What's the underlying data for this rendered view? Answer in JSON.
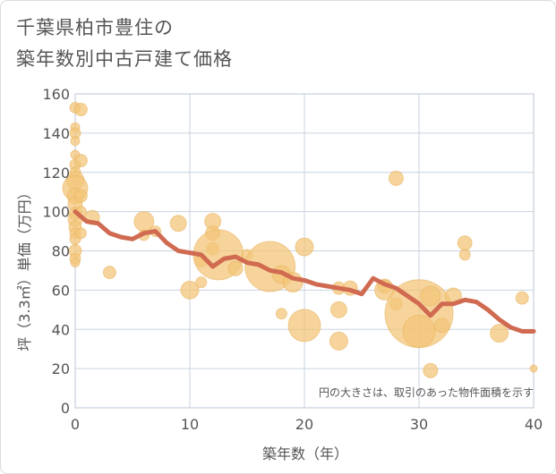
{
  "chart_data": {
    "type": "scatter",
    "title": [
      "千葉県柏市豊住の",
      "築年数別中古戸建て価格"
    ],
    "xlabel": "築年数（年）",
    "ylabel": "坪（3.3㎡）単価（万円）",
    "annotation": "円の大きさは、取引のあった物件面積を示す",
    "xlim": [
      0,
      40
    ],
    "ylim": [
      0,
      160
    ],
    "xticks": [
      0,
      10,
      20,
      30,
      40
    ],
    "yticks": [
      0,
      20,
      40,
      60,
      80,
      100,
      120,
      140,
      160
    ],
    "grid": true,
    "colors": {
      "bubble": "#f3c57a",
      "bubble_stroke": "#e8b460",
      "trend": "#d06a50",
      "axis_text": "#555555",
      "grid": "#c9d3e0"
    },
    "points": [
      {
        "x": 0,
        "y": 153,
        "r": 6
      },
      {
        "x": 0,
        "y": 143,
        "r": 5
      },
      {
        "x": 0,
        "y": 140,
        "r": 6
      },
      {
        "x": 0,
        "y": 136,
        "r": 5
      },
      {
        "x": 0,
        "y": 129,
        "r": 5
      },
      {
        "x": 0,
        "y": 124,
        "r": 6
      },
      {
        "x": 0,
        "y": 120,
        "r": 6
      },
      {
        "x": 0,
        "y": 116,
        "r": 10
      },
      {
        "x": 0,
        "y": 112,
        "r": 14
      },
      {
        "x": 0,
        "y": 108,
        "r": 9
      },
      {
        "x": 0,
        "y": 104,
        "r": 8
      },
      {
        "x": 0,
        "y": 99,
        "r": 7
      },
      {
        "x": 0,
        "y": 96,
        "r": 8
      },
      {
        "x": 0,
        "y": 92,
        "r": 7
      },
      {
        "x": 0,
        "y": 89,
        "r": 6
      },
      {
        "x": 0,
        "y": 86,
        "r": 6
      },
      {
        "x": 0,
        "y": 80,
        "r": 7
      },
      {
        "x": 0,
        "y": 76,
        "r": 6
      },
      {
        "x": 0,
        "y": 74,
        "r": 5
      },
      {
        "x": 0.5,
        "y": 152,
        "r": 7
      },
      {
        "x": 0.5,
        "y": 126,
        "r": 7
      },
      {
        "x": 0.5,
        "y": 108,
        "r": 7
      },
      {
        "x": 0.5,
        "y": 100,
        "r": 6
      },
      {
        "x": 0.5,
        "y": 89,
        "r": 6
      },
      {
        "x": 1.5,
        "y": 97,
        "r": 8
      },
      {
        "x": 3,
        "y": 69,
        "r": 7
      },
      {
        "x": 6,
        "y": 95,
        "r": 11
      },
      {
        "x": 6,
        "y": 88,
        "r": 6
      },
      {
        "x": 7,
        "y": 90,
        "r": 6
      },
      {
        "x": 9,
        "y": 94,
        "r": 9
      },
      {
        "x": 10,
        "y": 60,
        "r": 10
      },
      {
        "x": 11,
        "y": 64,
        "r": 6
      },
      {
        "x": 11,
        "y": 75,
        "r": 7
      },
      {
        "x": 12,
        "y": 95,
        "r": 9
      },
      {
        "x": 12,
        "y": 89,
        "r": 8
      },
      {
        "x": 12,
        "y": 81,
        "r": 7
      },
      {
        "x": 12.5,
        "y": 78,
        "r": 28
      },
      {
        "x": 14,
        "y": 71,
        "r": 8
      },
      {
        "x": 15,
        "y": 78,
        "r": 6
      },
      {
        "x": 17,
        "y": 72,
        "r": 28
      },
      {
        "x": 18,
        "y": 68,
        "r": 10
      },
      {
        "x": 18,
        "y": 48,
        "r": 6
      },
      {
        "x": 19,
        "y": 64,
        "r": 11
      },
      {
        "x": 20,
        "y": 82,
        "r": 10
      },
      {
        "x": 20,
        "y": 42,
        "r": 18
      },
      {
        "x": 23,
        "y": 61,
        "r": 7
      },
      {
        "x": 23,
        "y": 50,
        "r": 9
      },
      {
        "x": 23,
        "y": 34,
        "r": 10
      },
      {
        "x": 24,
        "y": 61,
        "r": 8
      },
      {
        "x": 27,
        "y": 62,
        "r": 8
      },
      {
        "x": 27,
        "y": 60,
        "r": 11
      },
      {
        "x": 28,
        "y": 117,
        "r": 8
      },
      {
        "x": 28,
        "y": 53,
        "r": 7
      },
      {
        "x": 30,
        "y": 48,
        "r": 38
      },
      {
        "x": 30,
        "y": 39,
        "r": 18
      },
      {
        "x": 31,
        "y": 57,
        "r": 11
      },
      {
        "x": 31,
        "y": 19,
        "r": 8
      },
      {
        "x": 32,
        "y": 42,
        "r": 8
      },
      {
        "x": 33,
        "y": 57,
        "r": 9
      },
      {
        "x": 34,
        "y": 84,
        "r": 8
      },
      {
        "x": 34,
        "y": 78,
        "r": 6
      },
      {
        "x": 37,
        "y": 38,
        "r": 10
      },
      {
        "x": 39,
        "y": 56,
        "r": 7
      },
      {
        "x": 40,
        "y": 20,
        "r": 4
      }
    ],
    "trend": {
      "x": [
        0,
        1,
        2,
        3,
        4,
        5,
        6,
        7,
        8,
        9,
        10,
        11,
        12,
        13,
        14,
        15,
        16,
        17,
        18,
        19,
        20,
        21,
        22,
        23,
        24,
        25,
        26,
        27,
        28,
        29,
        30,
        31,
        32,
        33,
        34,
        35,
        36,
        37,
        38,
        39,
        40
      ],
      "y": [
        100,
        95,
        94,
        89,
        87,
        86,
        89,
        90,
        84,
        80,
        79,
        78,
        72,
        76,
        77,
        74,
        73,
        70,
        69,
        66,
        65,
        63,
        62,
        61,
        60,
        58,
        66,
        63,
        61,
        57,
        53,
        47,
        53,
        53,
        55,
        54,
        50,
        45,
        41,
        39,
        39
      ]
    }
  }
}
